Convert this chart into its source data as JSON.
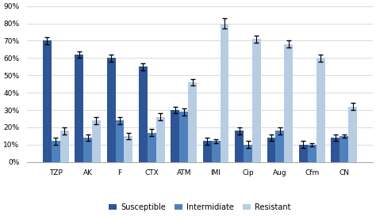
{
  "categories": [
    "TZP",
    "AK",
    "F",
    "CTX",
    "ATM",
    "IMI",
    "Cip",
    "Aug",
    "Cfm",
    "CN"
  ],
  "susceptible": [
    70,
    62,
    60,
    55,
    30,
    12,
    18,
    14,
    10,
    14
  ],
  "intermediate": [
    12,
    14,
    24,
    17,
    29,
    12,
    10,
    18,
    10,
    15
  ],
  "resistant": [
    18,
    24,
    15,
    26,
    46,
    80,
    71,
    68,
    60,
    32
  ],
  "susceptible_err": [
    2,
    2,
    2,
    2,
    2,
    2,
    2,
    2,
    2,
    2
  ],
  "intermediate_err": [
    2,
    2,
    2,
    2,
    2,
    1,
    2,
    2,
    1,
    1
  ],
  "resistant_err": [
    2,
    2,
    2,
    2,
    2,
    3,
    2,
    2,
    2,
    2
  ],
  "color_susceptible": "#2E5596",
  "color_intermediate": "#4F81BD",
  "color_resistant": "#B8CCE4",
  "ylabel_ticks": [
    "0%",
    "10%",
    "20%",
    "30%",
    "40%",
    "50%",
    "60%",
    "70%",
    "80%",
    "90%"
  ],
  "ylim": [
    0,
    90
  ],
  "legend_labels": [
    "Susceptible",
    "Intermidiate",
    "Resistant"
  ],
  "background_color": "#ffffff",
  "bar_width": 0.27
}
